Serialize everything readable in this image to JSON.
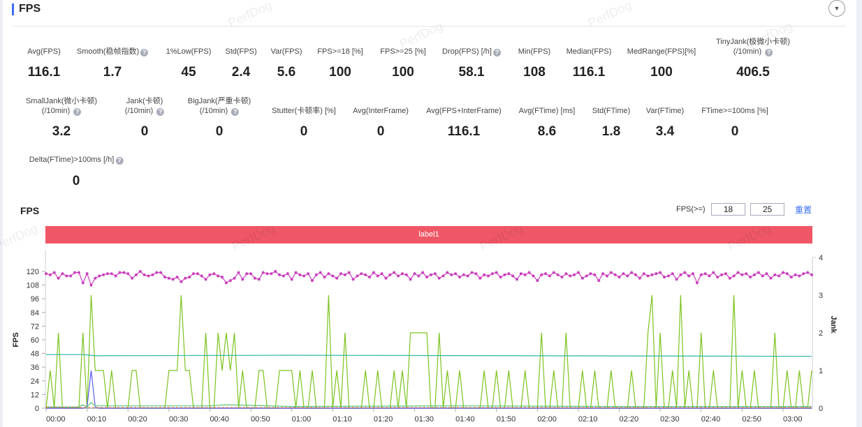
{
  "header": {
    "title": "FPS",
    "toggle_icon": "caret-down-icon"
  },
  "watermark": "PerfDog",
  "metrics": [
    {
      "label": "Avg(FPS)",
      "value": "116.1",
      "help": false
    },
    {
      "label": "Smooth(稳帧指数)",
      "value": "1.7",
      "help": true
    },
    {
      "label": "1%Low(FPS)",
      "value": "45",
      "help": false
    },
    {
      "label": "Std(FPS)",
      "value": "2.4",
      "help": false
    },
    {
      "label": "Var(FPS)",
      "value": "5.6",
      "help": false
    },
    {
      "label": "FPS>=18 [%]",
      "value": "100",
      "help": false
    },
    {
      "label": "FPS>=25 [%]",
      "value": "100",
      "help": false
    },
    {
      "label": "Drop(FPS) [/h]",
      "value": "58.1",
      "help": true
    },
    {
      "label": "Min(FPS)",
      "value": "108",
      "help": false
    },
    {
      "label": "Median(FPS)",
      "value": "116.1",
      "help": false
    },
    {
      "label": "MedRange(FPS)[%]",
      "value": "100",
      "help": false
    },
    {
      "label": "TinyJank(极微小卡顿)",
      "label2": "(/10min)",
      "value": "406.5",
      "help": true
    },
    {
      "label": "SmallJank(微小卡顿)",
      "label2": "(/10min)",
      "value": "3.2",
      "help": true
    },
    {
      "label": "Jank(卡顿)",
      "label2": "(/10min)",
      "value": "0",
      "help": true
    },
    {
      "label": "BigJank(严重卡顿)",
      "label2": "(/10min)",
      "value": "0",
      "help": true
    },
    {
      "label": "Stutter(卡顿率) [%]",
      "value": "0",
      "help": false
    },
    {
      "label": "Avg(InterFrame)",
      "value": "0",
      "help": false
    },
    {
      "label": "Avg(FPS+InterFrame)",
      "value": "116.1",
      "help": false
    },
    {
      "label": "Avg(FTime) [ms]",
      "value": "8.6",
      "help": false
    },
    {
      "label": "Std(FTime)",
      "value": "1.8",
      "help": false
    },
    {
      "label": "Var(FTime)",
      "value": "3.4",
      "help": false
    },
    {
      "label": "FTime>=100ms [%]",
      "value": "0",
      "help": false
    },
    {
      "label": "Delta(FTime)>100ms [/h]",
      "value": "0",
      "help": true
    }
  ],
  "chart_header": {
    "title": "FPS",
    "threshold_label": "FPS(>=)",
    "threshold1": "18",
    "threshold2": "25",
    "reset_label": "重置"
  },
  "label_bar": {
    "text": "label1",
    "color": "#ef5766"
  },
  "chart_data": {
    "type": "line",
    "ylabel": "FPS",
    "y2label": "Jank",
    "ylim": [
      0,
      132
    ],
    "yticks": [
      "0",
      "12",
      "24",
      "36",
      "48",
      "60",
      "72",
      "84",
      "96",
      "108",
      "120"
    ],
    "y2lim": [
      0,
      4
    ],
    "y2ticks": [
      "0",
      "1",
      "2",
      "3",
      "4"
    ],
    "xticks": [
      "00:00",
      "00:10",
      "00:20",
      "00:30",
      "00:40",
      "00:50",
      "01:00",
      "01:10",
      "01:20",
      "01:30",
      "01:40",
      "01:50",
      "02:00",
      "02:10",
      "02:20",
      "02:30",
      "02:40",
      "02:50",
      "03:00"
    ],
    "x_range_seconds": [
      0,
      187
    ],
    "series": [
      {
        "axis": "left",
        "color": "#c93fbd",
        "markers": true,
        "values": [
          118,
          117,
          119,
          114,
          118,
          116,
          116,
          119,
          119,
          110,
          118,
          108,
          114,
          116,
          117,
          118,
          118,
          116,
          119,
          119,
          118,
          114,
          117,
          120,
          117,
          116,
          117,
          119,
          119,
          115,
          114,
          113,
          115,
          111,
          114,
          115,
          118,
          118,
          116,
          113,
          117,
          118,
          116,
          115,
          110,
          112,
          114,
          119,
          113,
          118,
          118,
          114,
          113,
          119,
          118,
          118,
          120,
          117,
          116,
          118,
          113,
          119,
          117,
          116,
          118,
          112,
          117,
          119,
          115,
          118,
          116,
          114,
          118,
          117,
          119,
          113,
          116,
          118,
          117,
          115,
          119,
          116,
          118,
          114,
          117,
          119,
          116,
          118,
          117,
          113,
          118,
          116,
          119,
          115,
          117,
          118,
          114,
          116,
          119,
          117,
          118,
          115,
          117,
          116,
          119,
          118,
          114,
          117,
          116,
          118,
          119,
          115,
          117,
          118,
          116,
          113,
          118,
          117,
          119,
          116,
          112,
          117,
          118,
          116,
          119,
          117,
          115,
          118,
          116,
          117,
          119,
          114,
          116,
          118,
          117,
          112,
          118,
          116,
          119,
          117,
          115,
          118,
          116,
          119,
          117,
          114,
          118,
          116,
          117,
          118,
          119,
          115,
          116,
          118,
          113,
          117,
          119,
          116,
          118,
          110,
          117,
          118,
          116,
          119,
          115,
          117,
          118,
          114,
          116,
          119,
          117,
          118,
          115,
          117,
          119,
          116,
          118,
          114,
          117,
          116,
          119,
          118,
          115,
          117,
          116,
          118,
          119,
          117
        ]
      },
      {
        "axis": "right",
        "color": "#7cc31f",
        "markers": false,
        "values": [
          0,
          1,
          0,
          2,
          0,
          0,
          0,
          0,
          0,
          2,
          0,
          3,
          1,
          1,
          1,
          0,
          1,
          0,
          0,
          0,
          0,
          1,
          1,
          0,
          0,
          0,
          0,
          0,
          0,
          0,
          1,
          1,
          1,
          3,
          1,
          1,
          0,
          0,
          0,
          2,
          0,
          0,
          2,
          1,
          2,
          1,
          2,
          0,
          1,
          0,
          0,
          0,
          1,
          1,
          0,
          0,
          0,
          1,
          1,
          1,
          1,
          0,
          1,
          0,
          0,
          1,
          0,
          0,
          0,
          3,
          0,
          1,
          0,
          2,
          0,
          0,
          0,
          0,
          1,
          0,
          0,
          1,
          0,
          0,
          0,
          1,
          0,
          1,
          0,
          2,
          2,
          2,
          2,
          2,
          0,
          0,
          2,
          0,
          1,
          0,
          0,
          1,
          0,
          0,
          0,
          0,
          0,
          1,
          0,
          0,
          1,
          0,
          0,
          1,
          0,
          0,
          0,
          1,
          0,
          0,
          0,
          2,
          0,
          0,
          1,
          0,
          0,
          2,
          0,
          0,
          0,
          1,
          0,
          0,
          1,
          0,
          0,
          0,
          1,
          0,
          0,
          0,
          0,
          1,
          0,
          0,
          0,
          2,
          3,
          0,
          2,
          0,
          0,
          1,
          0,
          3,
          0,
          1,
          0,
          0,
          2,
          0,
          0,
          1,
          0,
          0,
          0,
          0,
          3,
          0,
          1,
          0,
          0,
          1,
          0,
          0,
          0,
          0,
          2,
          0,
          0,
          1,
          0,
          0,
          1,
          0,
          0,
          1
        ]
      },
      {
        "axis": "left",
        "color": "#2bb5a6",
        "markers": false,
        "points": [
          [
            0,
            47
          ],
          [
            9,
            47
          ],
          [
            12,
            46
          ],
          [
            60,
            46.5
          ],
          [
            120,
            46
          ],
          [
            187,
            45.5
          ]
        ]
      },
      {
        "axis": "left",
        "color": "#5a5cf0",
        "markers": false,
        "points": [
          [
            0,
            0
          ],
          [
            9,
            0
          ],
          [
            10,
            1
          ],
          [
            11,
            33
          ],
          [
            12,
            1
          ],
          [
            13,
            0
          ],
          [
            187,
            0
          ]
        ]
      },
      {
        "axis": "left",
        "color": "#5cc46a",
        "markers": false,
        "points": [
          [
            0,
            1
          ],
          [
            8,
            1
          ],
          [
            9,
            3
          ],
          [
            10,
            1
          ],
          [
            11,
            5
          ],
          [
            12,
            2
          ],
          [
            40,
            2
          ],
          [
            44,
            3
          ],
          [
            60,
            1.5
          ],
          [
            100,
            2
          ],
          [
            140,
            1.5
          ],
          [
            187,
            1.5
          ]
        ]
      },
      {
        "axis": "left",
        "color": "#f06a2a",
        "markers": false,
        "dashed": true,
        "points": [
          [
            0,
            0.5
          ],
          [
            187,
            0.5
          ]
        ]
      }
    ]
  }
}
